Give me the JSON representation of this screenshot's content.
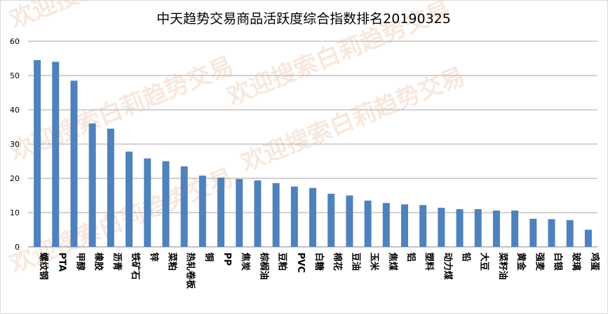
{
  "chart_data": {
    "type": "bar",
    "title": "中天趋势交易商品活跃度综合指数排名20190325",
    "xlabel": "",
    "ylabel": "",
    "ylim": [
      0,
      60
    ],
    "y_ticks": [
      0,
      10,
      20,
      30,
      40,
      50,
      60
    ],
    "grid": true,
    "bar_color": "#4f81bd",
    "categories": [
      "螺纹钢",
      "PTA",
      "甲醇",
      "橡胶",
      "沥青",
      "铁矿石",
      "锌",
      "菜粕",
      "热轧卷板",
      "铜",
      "PP",
      "焦炭",
      "棕榈油",
      "豆粕",
      "PVC",
      "白糖",
      "棉花",
      "豆油",
      "玉米",
      "焦煤",
      "铝",
      "塑料",
      "动力煤",
      "铅",
      "大豆",
      "菜籽油",
      "黄金",
      "强麦",
      "白银",
      "玻璃",
      "鸡蛋"
    ],
    "values": [
      54.5,
      54.0,
      48.5,
      36.0,
      34.5,
      27.8,
      25.8,
      25.0,
      23.5,
      20.8,
      20.2,
      19.8,
      19.4,
      18.6,
      17.6,
      17.2,
      15.5,
      15.0,
      13.5,
      12.8,
      12.4,
      12.2,
      11.4,
      11.0,
      11.0,
      10.6,
      10.6,
      8.2,
      8.1,
      7.8,
      5.0
    ]
  },
  "watermark": {
    "text": "欢迎搜索白莉趋势交易",
    "color": "#f2d6c4"
  }
}
